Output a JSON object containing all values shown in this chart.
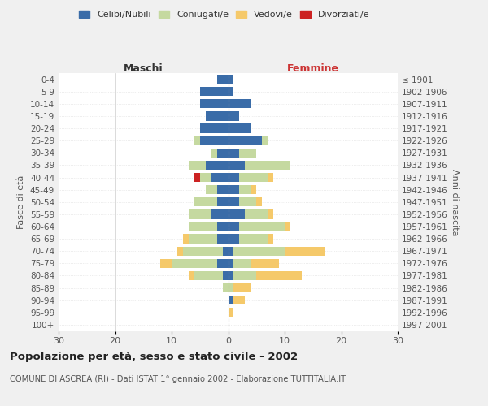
{
  "age_groups": [
    "0-4",
    "5-9",
    "10-14",
    "15-19",
    "20-24",
    "25-29",
    "30-34",
    "35-39",
    "40-44",
    "45-49",
    "50-54",
    "55-59",
    "60-64",
    "65-69",
    "70-74",
    "75-79",
    "80-84",
    "85-89",
    "90-94",
    "95-99",
    "100+"
  ],
  "birth_years": [
    "1997-2001",
    "1992-1996",
    "1987-1991",
    "1982-1986",
    "1977-1981",
    "1972-1976",
    "1967-1971",
    "1962-1966",
    "1957-1961",
    "1952-1956",
    "1947-1951",
    "1942-1946",
    "1937-1941",
    "1932-1936",
    "1927-1931",
    "1922-1926",
    "1917-1921",
    "1912-1916",
    "1907-1911",
    "1902-1906",
    "≤ 1901"
  ],
  "colors": {
    "celibe": "#3a6ca8",
    "coniugato": "#c5d9a0",
    "vedovo": "#f5c96a",
    "divorziato": "#cc2222"
  },
  "males": {
    "celibe": [
      2,
      5,
      5,
      4,
      5,
      5,
      2,
      4,
      3,
      2,
      2,
      3,
      2,
      2,
      1,
      2,
      1,
      0,
      0,
      0,
      0
    ],
    "coniugato": [
      0,
      0,
      0,
      0,
      0,
      1,
      1,
      3,
      2,
      2,
      4,
      4,
      5,
      5,
      7,
      8,
      5,
      1,
      0,
      0,
      0
    ],
    "vedovo": [
      0,
      0,
      0,
      0,
      0,
      0,
      0,
      0,
      0,
      0,
      0,
      0,
      0,
      1,
      1,
      2,
      1,
      0,
      0,
      0,
      0
    ],
    "divorziato": [
      0,
      0,
      0,
      0,
      0,
      0,
      0,
      0,
      1,
      0,
      0,
      0,
      0,
      0,
      0,
      0,
      0,
      0,
      0,
      0,
      0
    ]
  },
  "females": {
    "nubile": [
      1,
      1,
      4,
      2,
      4,
      6,
      2,
      3,
      2,
      2,
      2,
      3,
      2,
      2,
      1,
      1,
      1,
      0,
      1,
      0,
      0
    ],
    "coniugata": [
      0,
      0,
      0,
      0,
      0,
      1,
      3,
      8,
      5,
      2,
      3,
      4,
      8,
      5,
      9,
      3,
      4,
      1,
      0,
      0,
      0
    ],
    "vedova": [
      0,
      0,
      0,
      0,
      0,
      0,
      0,
      0,
      1,
      1,
      1,
      1,
      1,
      1,
      7,
      5,
      8,
      3,
      2,
      1,
      0
    ],
    "divorziata": [
      0,
      0,
      0,
      0,
      0,
      0,
      0,
      0,
      0,
      0,
      0,
      0,
      0,
      0,
      0,
      0,
      0,
      0,
      0,
      0,
      0
    ]
  },
  "xlim": 30,
  "title_main": "Popolazione per età, sesso e stato civile - 2002",
  "title_sub": "COMUNE DI ASCREA (RI) - Dati ISTAT 1° gennaio 2002 - Elaborazione TUTTITALIA.IT",
  "ylabel_left": "Fasce di età",
  "ylabel_right": "Anni di nascita",
  "xlabel_left": "Maschi",
  "xlabel_right": "Femmine",
  "bg_color": "#f0f0f0",
  "plot_bg": "#ffffff"
}
